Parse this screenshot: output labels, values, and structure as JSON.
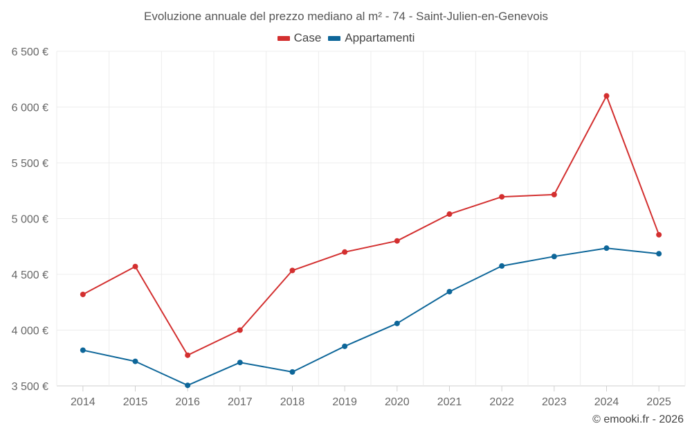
{
  "chart_data": {
    "type": "line",
    "title": "Evoluzione annuale del prezzo mediano al m² - 74 - Saint-Julien-en-Genevois",
    "categories": [
      "2014",
      "2015",
      "2016",
      "2017",
      "2018",
      "2019",
      "2020",
      "2021",
      "2022",
      "2023",
      "2024",
      "2025"
    ],
    "series": [
      {
        "name": "Case",
        "color": "#d32f2f",
        "values": [
          4320,
          4570,
          3775,
          4000,
          4535,
          4700,
          4800,
          5040,
          5195,
          5215,
          6100,
          4855
        ]
      },
      {
        "name": "Appartamenti",
        "color": "#0d6699",
        "values": [
          3820,
          3720,
          3505,
          3710,
          3625,
          3855,
          4060,
          4345,
          4575,
          4660,
          4735,
          4685
        ]
      }
    ],
    "y_ticks": [
      3500,
      4000,
      4500,
      5000,
      5500,
      6000,
      6500
    ],
    "y_tick_labels": [
      "3 500 €",
      "4 000 €",
      "4 500 €",
      "5 000 €",
      "5 500 €",
      "6 000 €",
      "6 500 €"
    ],
    "ylim": [
      3500,
      6500
    ],
    "xlabel": "",
    "ylabel": "",
    "grid": true,
    "legend_position": "top-center"
  },
  "copyright": "© emooki.fr - 2026"
}
